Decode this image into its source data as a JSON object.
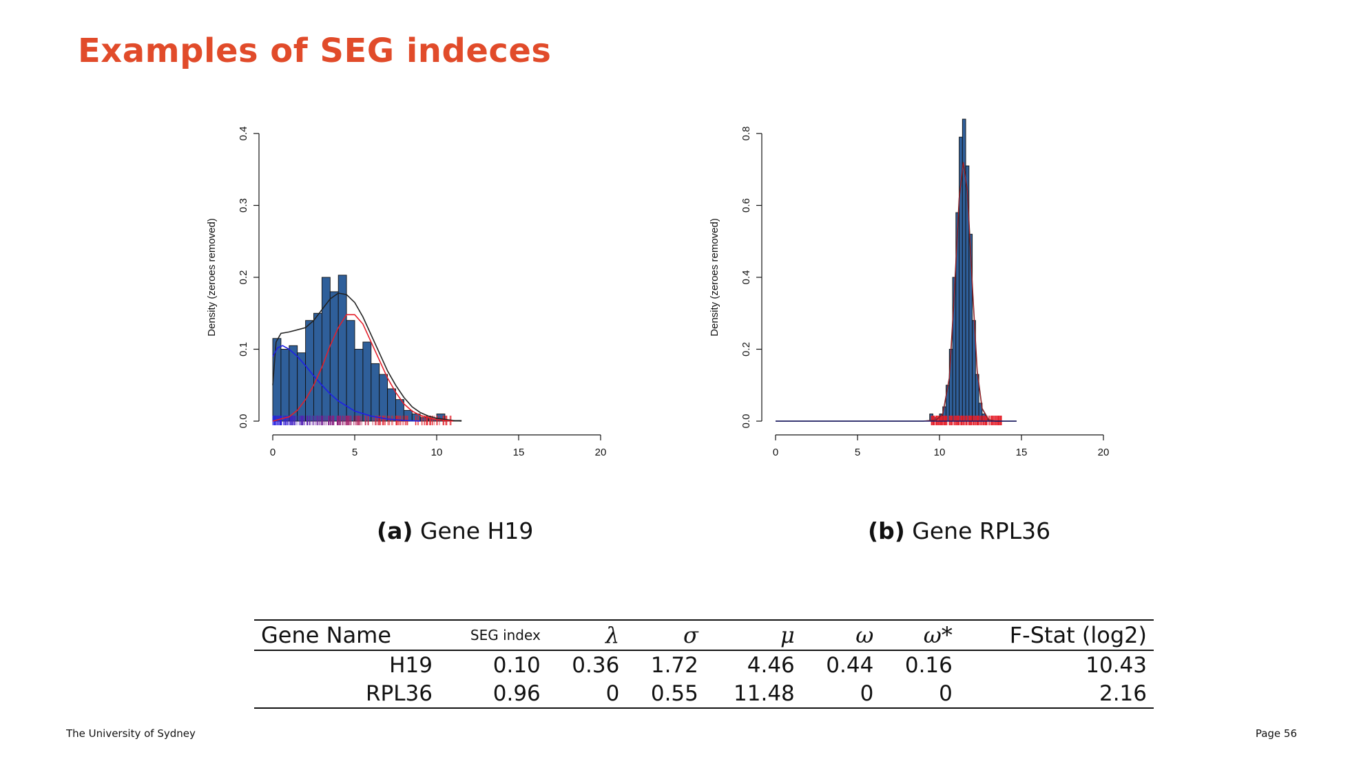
{
  "slide": {
    "title": "Examples of SEG indeces",
    "footer_left": "The University of Sydney",
    "footer_right": "Page 56"
  },
  "captions": [
    {
      "label": "(a)",
      "text": "Gene H19"
    },
    {
      "label": "(b)",
      "text": "Gene RPL36"
    }
  ],
  "colors": {
    "title": "#e14b2a",
    "bar_fill": "#2f5f9a",
    "bar_stroke": "#111111",
    "mixture_curve": "#222222",
    "low_component": "#1f1fe6",
    "high_component": "#e51f2a"
  },
  "chart_data": [
    {
      "type": "bar",
      "subtype": "histogram",
      "title": "",
      "xlabel": "",
      "ylabel": "Density (zeroes removed)",
      "xlim": [
        0,
        20
      ],
      "ylim": [
        0,
        0.4
      ],
      "xticks": [
        0,
        5,
        10,
        15,
        20
      ],
      "yticks": [
        "0.0",
        "0.1",
        "0.2",
        "0.3",
        "0.4"
      ],
      "bin_width": 0.5,
      "bin_start": 0,
      "values": [
        0.115,
        0.1,
        0.105,
        0.095,
        0.14,
        0.15,
        0.2,
        0.18,
        0.203,
        0.14,
        0.1,
        0.11,
        0.08,
        0.065,
        0.045,
        0.03,
        0.015,
        0.01,
        0.005,
        0.003,
        0.01,
        0.001,
        0.001,
        0.0
      ],
      "series": [
        {
          "name": "mixture density",
          "mean": null,
          "points": [
            [
              0,
              0.05
            ],
            [
              0.2,
              0.11
            ],
            [
              0.5,
              0.122
            ],
            [
              1,
              0.124
            ],
            [
              1.5,
              0.127
            ],
            [
              2,
              0.13
            ],
            [
              2.5,
              0.14
            ],
            [
              3,
              0.155
            ],
            [
              3.5,
              0.17
            ],
            [
              4,
              0.178
            ],
            [
              4.5,
              0.176
            ],
            [
              5,
              0.165
            ],
            [
              5.5,
              0.145
            ],
            [
              6,
              0.12
            ],
            [
              6.5,
              0.095
            ],
            [
              7,
              0.07
            ],
            [
              7.5,
              0.05
            ],
            [
              8,
              0.033
            ],
            [
              8.5,
              0.02
            ],
            [
              9,
              0.012
            ],
            [
              9.5,
              0.007
            ],
            [
              10,
              0.004
            ],
            [
              11,
              0.001
            ],
            [
              11.5,
              0.0
            ]
          ]
        },
        {
          "name": "low component",
          "mean": 0.6,
          "sd": 1.72,
          "points": [
            [
              0,
              0.09
            ],
            [
              0.3,
              0.102
            ],
            [
              0.6,
              0.105
            ],
            [
              1,
              0.1
            ],
            [
              1.5,
              0.09
            ],
            [
              2,
              0.077
            ],
            [
              2.5,
              0.063
            ],
            [
              3,
              0.05
            ],
            [
              3.5,
              0.038
            ],
            [
              4,
              0.028
            ],
            [
              5,
              0.014
            ],
            [
              6,
              0.007
            ],
            [
              7,
              0.003
            ],
            [
              8,
              0.001
            ],
            [
              9,
              0.0
            ]
          ]
        },
        {
          "name": "high component",
          "mean": 4.46,
          "points": [
            [
              0,
              0.0
            ],
            [
              1,
              0.006
            ],
            [
              1.5,
              0.015
            ],
            [
              2,
              0.03
            ],
            [
              2.5,
              0.05
            ],
            [
              3,
              0.075
            ],
            [
              3.5,
              0.105
            ],
            [
              4,
              0.13
            ],
            [
              4.5,
              0.148
            ],
            [
              5,
              0.148
            ],
            [
              5.5,
              0.135
            ],
            [
              6,
              0.11
            ],
            [
              6.5,
              0.085
            ],
            [
              7,
              0.06
            ],
            [
              7.5,
              0.04
            ],
            [
              8,
              0.024
            ],
            [
              8.5,
              0.014
            ],
            [
              9,
              0.008
            ],
            [
              10,
              0.002
            ],
            [
              11,
              0.0
            ]
          ]
        }
      ],
      "rug": {
        "min": 0,
        "max": 11,
        "low_color": "#1f1fe6",
        "high_color": "#e51f2a"
      }
    },
    {
      "type": "bar",
      "subtype": "histogram",
      "title": "",
      "xlabel": "",
      "ylabel": "Density (zeroes removed)",
      "xlim": [
        0,
        20
      ],
      "ylim": [
        0,
        0.8
      ],
      "xticks": [
        0,
        5,
        10,
        15,
        20
      ],
      "yticks": [
        "0.0",
        "0.2",
        "0.4",
        "0.6",
        "0.8"
      ],
      "bin_width": 0.2,
      "bin_start": 9.2,
      "values": [
        0.0,
        0.02,
        0.01,
        0.0,
        0.02,
        0.04,
        0.1,
        0.2,
        0.4,
        0.58,
        0.79,
        0.84,
        0.71,
        0.52,
        0.28,
        0.13,
        0.05,
        0.02,
        0.005,
        0.0
      ],
      "series": [
        {
          "name": "mixture density",
          "points": [
            [
              0,
              0.0
            ],
            [
              9,
              0.0
            ],
            [
              9.8,
              0.003
            ],
            [
              10.2,
              0.02
            ],
            [
              10.6,
              0.12
            ],
            [
              10.9,
              0.35
            ],
            [
              11.2,
              0.62
            ],
            [
              11.45,
              0.72
            ],
            [
              11.7,
              0.64
            ],
            [
              12,
              0.38
            ],
            [
              12.3,
              0.14
            ],
            [
              12.6,
              0.035
            ],
            [
              13,
              0.004
            ],
            [
              13.4,
              0.0
            ],
            [
              14.7,
              0.0
            ]
          ]
        }
      ],
      "rug": {
        "min": 9.5,
        "max": 13.8,
        "low_color": "#e51f2a",
        "high_color": "#e51f2a"
      }
    }
  ],
  "table": {
    "headers": [
      "Gene Name",
      "SEG index",
      "λ",
      "σ",
      "μ",
      "ω",
      "ω*",
      "F-Stat (log2)"
    ],
    "rows": [
      [
        "H19",
        "0.10",
        "0.36",
        "1.72",
        "4.46",
        "0.44",
        "0.16",
        "10.43"
      ],
      [
        "RPL36",
        "0.96",
        "0",
        "0.55",
        "11.48",
        "0",
        "0",
        "2.16"
      ]
    ]
  }
}
